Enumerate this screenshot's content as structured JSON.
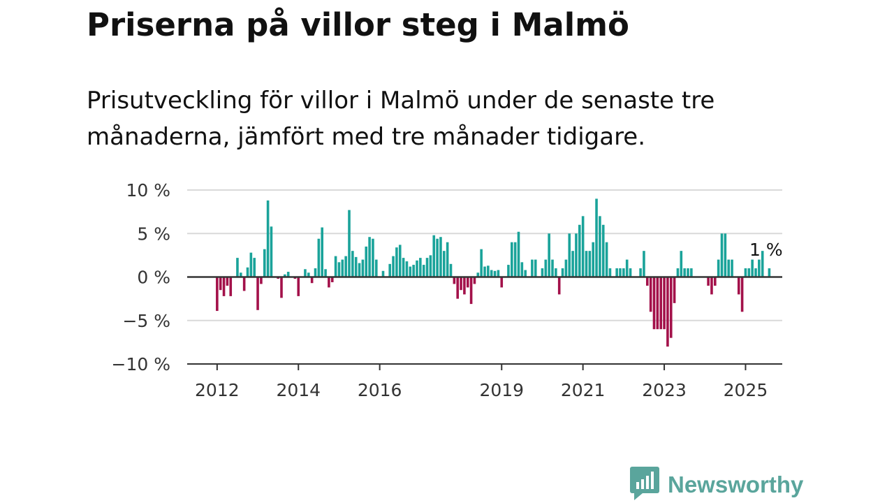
{
  "header": {
    "title": "Priserna på villor steg i Malmö",
    "subtitle": "Prisutveckling för villor i Malmö under de senaste tre månaderna, jämfört med tre månader tidigare."
  },
  "logo": {
    "text": "Newsworthy",
    "icon": "newsworthy-bar-chart-icon"
  },
  "colors": {
    "positive": "#1aa39a",
    "negative": "#a3114a",
    "grid": "#d9d9d9",
    "axis": "#333333"
  },
  "chart_data": {
    "type": "bar",
    "x_start": "2011-12",
    "y_tick_labels": [
      "10 %",
      "5 %",
      "0 %",
      "−5 %",
      "−10 %"
    ],
    "y_ticks": [
      10,
      5,
      0,
      -5,
      -10
    ],
    "ylim": [
      -10,
      10
    ],
    "x_ticks": [
      {
        "label": "2012",
        "date": "2012-01"
      },
      {
        "label": "2014",
        "date": "2014-01"
      },
      {
        "label": "2016",
        "date": "2016-01"
      },
      {
        "label": "2019",
        "date": "2019-01"
      },
      {
        "label": "2021",
        "date": "2021-01"
      },
      {
        "label": "2023",
        "date": "2023-01"
      },
      {
        "label": "2025",
        "date": "2025-01"
      }
    ],
    "grid": true,
    "annotation": {
      "text": "1 %",
      "date": "2025-05"
    },
    "values": [
      0,
      -3.9,
      -1.5,
      -2.2,
      -1.0,
      -2.2,
      0,
      2.2,
      0.5,
      -1.6,
      1.1,
      2.8,
      2.2,
      -3.8,
      -0.8,
      3.2,
      8.8,
      5.8,
      0,
      -0.2,
      -2.4,
      0.3,
      0.6,
      0,
      -0.2,
      -2.2,
      0,
      0.9,
      0.5,
      -0.7,
      1.0,
      4.4,
      5.7,
      0.9,
      -1.2,
      -0.6,
      2.4,
      1.7,
      2.0,
      2.4,
      7.7,
      3.0,
      2.3,
      1.6,
      2.0,
      3.5,
      4.6,
      4.4,
      2.0,
      0,
      0.7,
      0,
      1.5,
      2.4,
      3.4,
      3.7,
      2.2,
      1.8,
      1.2,
      1.4,
      1.9,
      2.2,
      1.4,
      2.2,
      2.5,
      4.8,
      4.4,
      4.6,
      3.0,
      4.0,
      1.5,
      -0.8,
      -2.5,
      -1.5,
      -2.0,
      -1.2,
      -3.1,
      -0.8,
      0.5,
      3.2,
      1.2,
      1.3,
      0.8,
      0.7,
      0.8,
      -1.2,
      0,
      1.4,
      4.0,
      4.0,
      5.2,
      1.7,
      0.8,
      0,
      2.0,
      2.0,
      0,
      1.0,
      2.0,
      5.0,
      2.0,
      1.0,
      -2.0,
      1.0,
      2.0,
      5.0,
      3.0,
      5.0,
      6.0,
      7.0,
      3.0,
      3.0,
      4.0,
      9.0,
      7.0,
      6.0,
      4.0,
      1.0,
      0,
      1.0,
      1.0,
      1.0,
      2.0,
      1.0,
      0,
      0,
      1.0,
      3.0,
      -1.0,
      -4.0,
      -6.0,
      -6.0,
      -6.0,
      -6.0,
      -8.0,
      -7.0,
      -3.0,
      1.0,
      3.0,
      1.0,
      1.0,
      1.0,
      0,
      0,
      0,
      0,
      -1.0,
      -2.0,
      -1.0,
      2.0,
      5.0,
      5.0,
      2.0,
      2.0,
      0,
      -2.0,
      -4.0,
      1.0,
      1.0,
      2.0,
      1.0,
      2.0,
      3.0,
      0,
      1.0
    ]
  }
}
